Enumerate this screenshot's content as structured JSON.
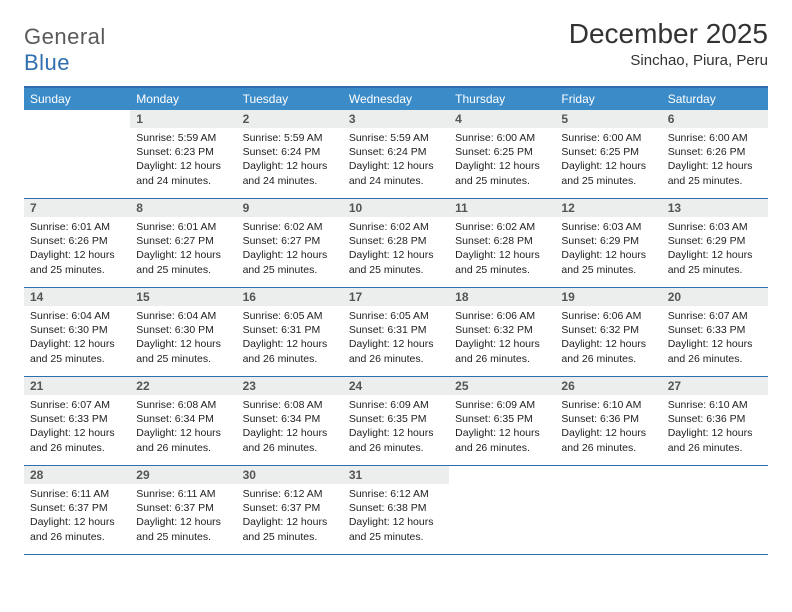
{
  "brand": {
    "name_a": "General",
    "name_b": "Blue"
  },
  "header": {
    "month_title": "December 2025",
    "location": "Sinchao, Piura, Peru"
  },
  "colors": {
    "accent": "#2f6fb0",
    "header_bg": "#3b8bc9",
    "daynum_bg": "#eceded"
  },
  "dow": [
    "Sunday",
    "Monday",
    "Tuesday",
    "Wednesday",
    "Thursday",
    "Friday",
    "Saturday"
  ],
  "weeks": [
    [
      {
        "n": "",
        "empty": true
      },
      {
        "n": "1",
        "sr": "5:59 AM",
        "ss": "6:23 PM",
        "dl": "12 hours and 24 minutes."
      },
      {
        "n": "2",
        "sr": "5:59 AM",
        "ss": "6:24 PM",
        "dl": "12 hours and 24 minutes."
      },
      {
        "n": "3",
        "sr": "5:59 AM",
        "ss": "6:24 PM",
        "dl": "12 hours and 24 minutes."
      },
      {
        "n": "4",
        "sr": "6:00 AM",
        "ss": "6:25 PM",
        "dl": "12 hours and 25 minutes."
      },
      {
        "n": "5",
        "sr": "6:00 AM",
        "ss": "6:25 PM",
        "dl": "12 hours and 25 minutes."
      },
      {
        "n": "6",
        "sr": "6:00 AM",
        "ss": "6:26 PM",
        "dl": "12 hours and 25 minutes."
      }
    ],
    [
      {
        "n": "7",
        "sr": "6:01 AM",
        "ss": "6:26 PM",
        "dl": "12 hours and 25 minutes."
      },
      {
        "n": "8",
        "sr": "6:01 AM",
        "ss": "6:27 PM",
        "dl": "12 hours and 25 minutes."
      },
      {
        "n": "9",
        "sr": "6:02 AM",
        "ss": "6:27 PM",
        "dl": "12 hours and 25 minutes."
      },
      {
        "n": "10",
        "sr": "6:02 AM",
        "ss": "6:28 PM",
        "dl": "12 hours and 25 minutes."
      },
      {
        "n": "11",
        "sr": "6:02 AM",
        "ss": "6:28 PM",
        "dl": "12 hours and 25 minutes."
      },
      {
        "n": "12",
        "sr": "6:03 AM",
        "ss": "6:29 PM",
        "dl": "12 hours and 25 minutes."
      },
      {
        "n": "13",
        "sr": "6:03 AM",
        "ss": "6:29 PM",
        "dl": "12 hours and 25 minutes."
      }
    ],
    [
      {
        "n": "14",
        "sr": "6:04 AM",
        "ss": "6:30 PM",
        "dl": "12 hours and 25 minutes."
      },
      {
        "n": "15",
        "sr": "6:04 AM",
        "ss": "6:30 PM",
        "dl": "12 hours and 25 minutes."
      },
      {
        "n": "16",
        "sr": "6:05 AM",
        "ss": "6:31 PM",
        "dl": "12 hours and 26 minutes."
      },
      {
        "n": "17",
        "sr": "6:05 AM",
        "ss": "6:31 PM",
        "dl": "12 hours and 26 minutes."
      },
      {
        "n": "18",
        "sr": "6:06 AM",
        "ss": "6:32 PM",
        "dl": "12 hours and 26 minutes."
      },
      {
        "n": "19",
        "sr": "6:06 AM",
        "ss": "6:32 PM",
        "dl": "12 hours and 26 minutes."
      },
      {
        "n": "20",
        "sr": "6:07 AM",
        "ss": "6:33 PM",
        "dl": "12 hours and 26 minutes."
      }
    ],
    [
      {
        "n": "21",
        "sr": "6:07 AM",
        "ss": "6:33 PM",
        "dl": "12 hours and 26 minutes."
      },
      {
        "n": "22",
        "sr": "6:08 AM",
        "ss": "6:34 PM",
        "dl": "12 hours and 26 minutes."
      },
      {
        "n": "23",
        "sr": "6:08 AM",
        "ss": "6:34 PM",
        "dl": "12 hours and 26 minutes."
      },
      {
        "n": "24",
        "sr": "6:09 AM",
        "ss": "6:35 PM",
        "dl": "12 hours and 26 minutes."
      },
      {
        "n": "25",
        "sr": "6:09 AM",
        "ss": "6:35 PM",
        "dl": "12 hours and 26 minutes."
      },
      {
        "n": "26",
        "sr": "6:10 AM",
        "ss": "6:36 PM",
        "dl": "12 hours and 26 minutes."
      },
      {
        "n": "27",
        "sr": "6:10 AM",
        "ss": "6:36 PM",
        "dl": "12 hours and 26 minutes."
      }
    ],
    [
      {
        "n": "28",
        "sr": "6:11 AM",
        "ss": "6:37 PM",
        "dl": "12 hours and 26 minutes."
      },
      {
        "n": "29",
        "sr": "6:11 AM",
        "ss": "6:37 PM",
        "dl": "12 hours and 25 minutes."
      },
      {
        "n": "30",
        "sr": "6:12 AM",
        "ss": "6:37 PM",
        "dl": "12 hours and 25 minutes."
      },
      {
        "n": "31",
        "sr": "6:12 AM",
        "ss": "6:38 PM",
        "dl": "12 hours and 25 minutes."
      },
      {
        "n": "",
        "empty": true
      },
      {
        "n": "",
        "empty": true
      },
      {
        "n": "",
        "empty": true
      }
    ]
  ],
  "labels": {
    "sunrise": "Sunrise: ",
    "sunset": "Sunset: ",
    "daylight": "Daylight: "
  }
}
